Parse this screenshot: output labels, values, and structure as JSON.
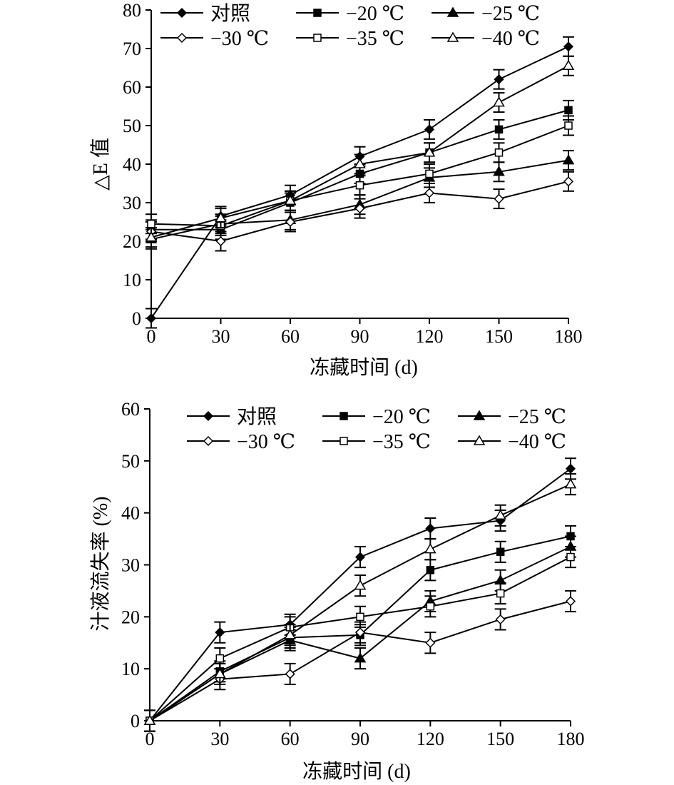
{
  "chart_data": [
    {
      "type": "line",
      "ylabel": "△E 值",
      "xlabel": "冻藏时间 (d)",
      "ylim": [
        0,
        80
      ],
      "yticks": [
        0,
        10,
        20,
        30,
        40,
        50,
        60,
        70,
        80
      ],
      "x": [
        0,
        30,
        60,
        90,
        120,
        150,
        180
      ],
      "legend_placement": "top",
      "error_bars": true,
      "series": [
        {
          "name": "对照",
          "marker": "diamond-filled",
          "values": [
            0,
            26.5,
            32,
            42,
            49,
            62,
            70.5
          ]
        },
        {
          "name": "−20 ℃",
          "marker": "square-filled",
          "values": [
            23,
            23,
            30,
            37.5,
            43,
            49,
            54
          ]
        },
        {
          "name": "−25 ℃",
          "marker": "triangle-filled",
          "values": [
            20.5,
            24.5,
            25.5,
            29.5,
            36.5,
            38,
            41
          ]
        },
        {
          "name": "−30 ℃",
          "marker": "diamond-open",
          "values": [
            22.5,
            20,
            25,
            28.5,
            32.5,
            31,
            35.5
          ]
        },
        {
          "name": "−35 ℃",
          "marker": "square-open",
          "values": [
            24.5,
            24,
            30.5,
            34.5,
            37.5,
            43,
            50
          ]
        },
        {
          "name": "−40 ℃",
          "marker": "triangle-open",
          "values": [
            21,
            26,
            30.5,
            40,
            43,
            56,
            65.5
          ]
        }
      ]
    },
    {
      "type": "line",
      "ylabel": "汁液流失率 (%)",
      "xlabel": "冻藏时间 (d)",
      "ylim": [
        0,
        60
      ],
      "yticks": [
        0,
        10,
        20,
        30,
        40,
        50,
        60
      ],
      "x": [
        0,
        30,
        60,
        90,
        120,
        150,
        180
      ],
      "legend_placement": "top",
      "error_bars": true,
      "series": [
        {
          "name": "对照",
          "marker": "diamond-filled",
          "values": [
            0,
            17,
            18.5,
            31.5,
            37,
            38.5,
            48.5
          ]
        },
        {
          "name": "−20 ℃",
          "marker": "square-filled",
          "values": [
            0,
            9.5,
            16,
            16.5,
            29,
            32.5,
            35.5
          ]
        },
        {
          "name": "−25 ℃",
          "marker": "triangle-filled",
          "values": [
            0,
            9,
            15.5,
            12,
            23,
            27,
            33.5
          ]
        },
        {
          "name": "−30 ℃",
          "marker": "diamond-open",
          "values": [
            0,
            8,
            9,
            17,
            15,
            19.5,
            23
          ]
        },
        {
          "name": "−35 ℃",
          "marker": "square-open",
          "values": [
            0,
            12,
            18,
            20,
            22,
            24.5,
            31.5
          ]
        },
        {
          "name": "−40 ℃",
          "marker": "triangle-open",
          "values": [
            0,
            9,
            16.5,
            26,
            33,
            39.5,
            45.5
          ]
        }
      ]
    }
  ]
}
